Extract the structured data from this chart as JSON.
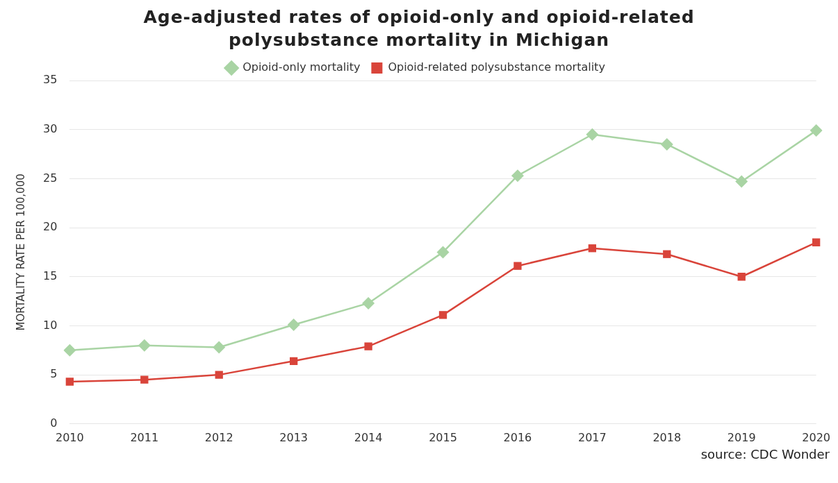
{
  "chart_data": {
    "type": "line",
    "title": "Age-adjusted rates of opioid-only and opioid-related polysubstance mortality in Michigan",
    "ylabel": "MORTALITY RATE PER 100,000",
    "categories": [
      "2010",
      "2011",
      "2012",
      "2013",
      "2014",
      "2015",
      "2016",
      "2017",
      "2018",
      "2019",
      "2020"
    ],
    "series": [
      {
        "name": "Opioid-only mortality",
        "color": "#a9d4a4",
        "marker": "diamond",
        "values": [
          7.5,
          8.0,
          7.8,
          10.1,
          12.3,
          17.5,
          25.3,
          29.5,
          28.5,
          24.7,
          29.9
        ]
      },
      {
        "name": "Opioid-related polysubstance mortality",
        "color": "#d9443a",
        "marker": "square",
        "values": [
          4.3,
          4.5,
          5.0,
          6.4,
          7.9,
          11.1,
          16.1,
          17.9,
          17.3,
          15.0,
          18.5
        ]
      }
    ],
    "ylim": [
      0,
      35
    ],
    "yticks": [
      0,
      5,
      10,
      15,
      20,
      25,
      30,
      35
    ],
    "grid": "y",
    "legend": "top",
    "line_style": "solid",
    "annotations": [
      "source: CDC Wonder"
    ]
  }
}
